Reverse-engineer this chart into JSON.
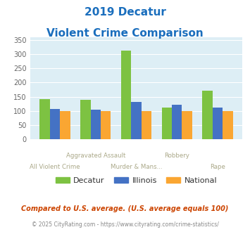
{
  "title_line1": "2019 Decatur",
  "title_line2": "Violent Crime Comparison",
  "categories": [
    "All Violent Crime",
    "Aggravated Assault",
    "Murder & Mans...",
    "Robbery",
    "Rape"
  ],
  "top_labels": [
    "",
    "Aggravated Assault",
    "",
    "Robbery",
    ""
  ],
  "bottom_labels": [
    "All Violent Crime",
    "",
    "Murder & Mans...",
    "",
    "Rape"
  ],
  "decatur_values": [
    142,
    140,
    312,
    112,
    172
  ],
  "illinois_values": [
    107,
    103,
    131,
    121,
    111
  ],
  "national_values": [
    100,
    100,
    100,
    100,
    100
  ],
  "decatur_color": "#7dc242",
  "illinois_color": "#4472c4",
  "national_color": "#faa632",
  "title_color": "#1a6ebd",
  "bg_color": "#ddeef5",
  "ylim": [
    0,
    360
  ],
  "yticks": [
    0,
    50,
    100,
    150,
    200,
    250,
    300,
    350
  ],
  "legend_labels": [
    "Decatur",
    "Illinois",
    "National"
  ],
  "footnote1": "Compared to U.S. average. (U.S. average equals 100)",
  "footnote2": "© 2025 CityRating.com - https://www.cityrating.com/crime-statistics/",
  "footnote1_color": "#cc4400",
  "footnote2_color": "#888888",
  "label_color": "#aaa888",
  "bar_width": 0.25
}
